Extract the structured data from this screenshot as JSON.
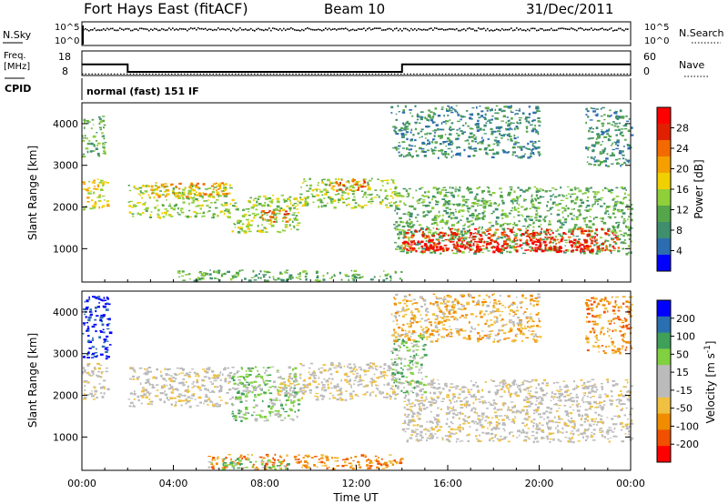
{
  "header": {
    "title": "Fort Hays East (fitACF)",
    "beam": "Beam 10",
    "date": "31/Dec/2011"
  },
  "noise_panel": {
    "left_label": "N.Sky",
    "right_label": "N.Search",
    "left_ticks": [
      "10^5",
      "10^0"
    ],
    "right_ticks": [
      "10^5",
      "10^0"
    ]
  },
  "freq_panel": {
    "left_label_line1": "Freq.",
    "left_label_line2": "[MHz]",
    "right_label": "Nave",
    "left_ticks": [
      "18",
      "8"
    ],
    "right_ticks": [
      "60",
      "0"
    ]
  },
  "cpid": {
    "label": "CPID",
    "value": "normal (fast) 151 IF"
  },
  "colors": {
    "power_scale": [
      "#0000ff",
      "#2c6db0",
      "#3f8f6f",
      "#55a64a",
      "#8ecf3a",
      "#f0d000",
      "#f5a000",
      "#f36a00",
      "#e02000",
      "#ff0000"
    ],
    "velocity_scale": [
      "#ff0000",
      "#f05000",
      "#f08c00",
      "#f0c040",
      "#bbbbbb",
      "#bbbbbb",
      "#80d040",
      "#3fa05a",
      "#2a6fb0",
      "#0000ff"
    ]
  },
  "chart_data": [
    {
      "type": "line",
      "name": "noise",
      "ylim_labels": [
        "10^0",
        "10^5"
      ]
    },
    {
      "type": "line",
      "name": "frequency",
      "x": [
        "00:00",
        "02:00",
        "02:00",
        "14:00",
        "14:00",
        "24:00"
      ],
      "series": [
        {
          "values": [
            12.5,
            12.5,
            9.5,
            9.5,
            12.5,
            12.5
          ]
        }
      ],
      "ylim": [
        8,
        18
      ]
    },
    {
      "type": "heatmap",
      "name": "power",
      "ylabel": "Slant Range [km]",
      "yticks": [
        "1000",
        "2000",
        "3000",
        "4000"
      ],
      "ylim": [
        200,
        4500
      ],
      "colorbar_label": "Power [dB]",
      "colorbar_ticks": [
        "4",
        "8",
        "12",
        "16",
        "20",
        "24",
        "28"
      ],
      "regions": [
        {
          "t0": 0.0,
          "t1": 1.1,
          "r0": 1900,
          "r1": 2700,
          "level": 5
        },
        {
          "t0": 0.0,
          "t1": 1.0,
          "r0": 3200,
          "r1": 4200,
          "level": 3
        },
        {
          "t0": 2.0,
          "t1": 6.5,
          "r0": 1750,
          "r1": 2550,
          "level": 4
        },
        {
          "t0": 3.0,
          "t1": 6.3,
          "r0": 2250,
          "r1": 2600,
          "level": 6
        },
        {
          "t0": 6.5,
          "t1": 9.5,
          "r0": 1400,
          "r1": 2300,
          "level": 4
        },
        {
          "t0": 7.8,
          "t1": 9.0,
          "r0": 1650,
          "r1": 1950,
          "level": 7
        },
        {
          "t0": 9.5,
          "t1": 13.8,
          "r0": 2000,
          "r1": 2700,
          "level": 4
        },
        {
          "t0": 10.8,
          "t1": 12.5,
          "r0": 2400,
          "r1": 2700,
          "level": 7
        },
        {
          "t0": 13.6,
          "t1": 24.0,
          "r0": 900,
          "r1": 2500,
          "level": 3
        },
        {
          "t0": 14.0,
          "t1": 23.5,
          "r0": 950,
          "r1": 1500,
          "level": 8
        },
        {
          "t0": 14.0,
          "t1": 22.5,
          "r0": 950,
          "r1": 1200,
          "level": 9
        },
        {
          "t0": 13.5,
          "t1": 20.0,
          "r0": 3200,
          "r1": 4450,
          "level": 2
        },
        {
          "t0": 22.0,
          "t1": 24.0,
          "r0": 3000,
          "r1": 4400,
          "level": 2
        },
        {
          "t0": 4.0,
          "t1": 14.0,
          "r0": 250,
          "r1": 500,
          "level": 3
        }
      ]
    },
    {
      "type": "heatmap",
      "name": "velocity",
      "ylabel": "Slant Range [km]",
      "yticks": [
        "1000",
        "2000",
        "3000",
        "4000"
      ],
      "ylim": [
        200,
        4500
      ],
      "xlabel": "Time UT",
      "xticks": [
        "00:00",
        "04:00",
        "08:00",
        "12:00",
        "16:00",
        "20:00",
        "00:00"
      ],
      "colorbar_label": "Velocity [m s^-1]",
      "colorbar_ticks": [
        "200",
        "100",
        "50",
        "15",
        "-15",
        "-50",
        "-100",
        "-200"
      ],
      "regions": [
        {
          "t0": 0.0,
          "t1": 1.2,
          "r0": 2900,
          "r1": 4400,
          "level": 9
        },
        {
          "t0": 0.0,
          "t1": 1.1,
          "r0": 1900,
          "r1": 2800,
          "level": 4
        },
        {
          "t0": 2.0,
          "t1": 6.5,
          "r0": 1750,
          "r1": 2700,
          "level": 4
        },
        {
          "t0": 6.5,
          "t1": 9.5,
          "r0": 1400,
          "r1": 2700,
          "level": 6
        },
        {
          "t0": 8.5,
          "t1": 10.0,
          "r0": 2000,
          "r1": 2500,
          "level": 4
        },
        {
          "t0": 9.5,
          "t1": 13.8,
          "r0": 1900,
          "r1": 2800,
          "level": 4
        },
        {
          "t0": 14.0,
          "t1": 24.0,
          "r0": 900,
          "r1": 2400,
          "level": 4
        },
        {
          "t0": 13.5,
          "t1": 15.0,
          "r0": 2000,
          "r1": 3500,
          "level": 6
        },
        {
          "t0": 13.5,
          "t1": 20.0,
          "r0": 3300,
          "r1": 4450,
          "level": 3
        },
        {
          "t0": 22.0,
          "t1": 24.0,
          "r0": 3000,
          "r1": 4400,
          "level": 2
        },
        {
          "t0": 5.5,
          "t1": 14.0,
          "r0": 250,
          "r1": 600,
          "level": 2
        },
        {
          "t0": 5.5,
          "t1": 9.0,
          "r0": 250,
          "r1": 500,
          "level": 6
        }
      ]
    }
  ]
}
